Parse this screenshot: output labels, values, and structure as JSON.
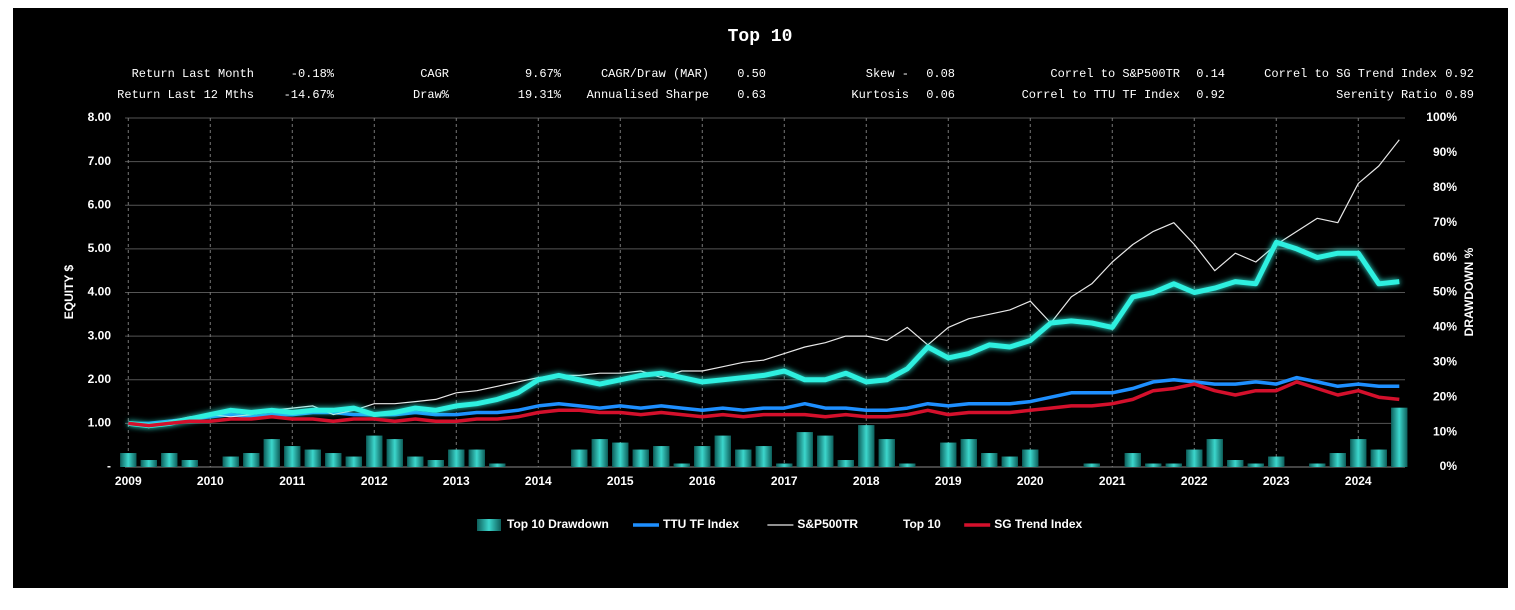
{
  "chart_data": {
    "type": "line",
    "title": "Top 10",
    "stats": [
      [
        "Return Last Month",
        "-0.18%",
        "CAGR",
        "9.67%",
        "CAGR/Draw (MAR)",
        "0.50",
        "Skew -",
        "0.08",
        "Correl to S&P500TR",
        "0.14",
        "Correl to SG Trend Index",
        "0.92"
      ],
      [
        "Return Last 12 Mths",
        "-14.67%",
        "Draw%",
        "19.31%",
        "Annualised Sharpe",
        "0.63",
        "Kurtosis",
        "0.06",
        "Correl to TTU TF Index",
        "0.92",
        "Serenity Ratio",
        "0.89"
      ]
    ],
    "y_label": "EQUITY $",
    "y2_label": "DRAWDOWN %",
    "x": [
      2009,
      2009.25,
      2009.5,
      2009.75,
      2010,
      2010.25,
      2010.5,
      2010.75,
      2011,
      2011.25,
      2011.5,
      2011.75,
      2012,
      2012.25,
      2012.5,
      2012.75,
      2013,
      2013.25,
      2013.5,
      2013.75,
      2014,
      2014.25,
      2014.5,
      2014.75,
      2015,
      2015.25,
      2015.5,
      2015.75,
      2016,
      2016.25,
      2016.5,
      2016.75,
      2017,
      2017.25,
      2017.5,
      2017.75,
      2018,
      2018.25,
      2018.5,
      2018.75,
      2019,
      2019.25,
      2019.5,
      2019.75,
      2020,
      2020.25,
      2020.5,
      2020.75,
      2021,
      2021.25,
      2021.5,
      2021.75,
      2022,
      2022.25,
      2022.5,
      2022.75,
      2023,
      2023.25,
      2023.5,
      2023.75,
      2024,
      2024.25,
      2024.5
    ],
    "xlim": [
      2008.96,
      2024.57
    ],
    "xticks": [
      2009,
      2010,
      2011,
      2012,
      2013,
      2014,
      2015,
      2016,
      2017,
      2018,
      2019,
      2020,
      2021,
      2022,
      2023,
      2024
    ],
    "ylim": [
      0,
      8
    ],
    "yticks": [
      {
        "value": 0,
        "label": "-"
      },
      {
        "value": 1,
        "label": "1.00"
      },
      {
        "value": 2,
        "label": "2.00"
      },
      {
        "value": 3,
        "label": "3.00"
      },
      {
        "value": 4,
        "label": "4.00"
      },
      {
        "value": 5,
        "label": "5.00"
      },
      {
        "value": 6,
        "label": "6.00"
      },
      {
        "value": 7,
        "label": "7.00"
      },
      {
        "value": 8,
        "label": "8.00"
      }
    ],
    "y2lim": [
      0,
      100
    ],
    "y2ticks": [
      {
        "value": 0,
        "label": "0%"
      },
      {
        "value": 10,
        "label": "10%"
      },
      {
        "value": 20,
        "label": "20%"
      },
      {
        "value": 30,
        "label": "30%"
      },
      {
        "value": 40,
        "label": "40%"
      },
      {
        "value": 50,
        "label": "50%"
      },
      {
        "value": 60,
        "label": "60%"
      },
      {
        "value": 70,
        "label": "70%"
      },
      {
        "value": 80,
        "label": "80%"
      },
      {
        "value": 90,
        "label": "90%"
      },
      {
        "value": 100,
        "label": "100%"
      }
    ],
    "grid": true,
    "legend": "bottom",
    "series": [
      {
        "name": "Top 10 Drawdown",
        "type": "bar",
        "axis": "y2",
        "color": "#2bb5ad",
        "values": [
          4,
          2,
          4,
          2,
          0,
          3,
          4,
          8,
          6,
          5,
          4,
          3,
          9,
          8,
          3,
          2,
          5,
          5,
          1,
          0,
          0,
          0,
          5,
          8,
          7,
          5,
          6,
          1,
          6,
          9,
          5,
          6,
          1,
          10,
          9,
          2,
          12,
          8,
          1,
          0,
          7,
          8,
          4,
          3,
          5,
          0,
          0,
          1,
          0,
          4,
          1,
          1,
          5,
          8,
          2,
          1,
          3,
          0,
          1,
          4,
          8,
          5,
          17
        ]
      },
      {
        "name": "TTU TF Index",
        "type": "line",
        "color": "#1e8fff",
        "line_width": 3.5,
        "values": [
          1.0,
          1.0,
          1.05,
          1.1,
          1.15,
          1.2,
          1.15,
          1.2,
          1.2,
          1.25,
          1.25,
          1.2,
          1.2,
          1.2,
          1.25,
          1.2,
          1.2,
          1.25,
          1.25,
          1.3,
          1.4,
          1.45,
          1.4,
          1.35,
          1.4,
          1.35,
          1.4,
          1.35,
          1.3,
          1.35,
          1.3,
          1.35,
          1.35,
          1.45,
          1.35,
          1.35,
          1.3,
          1.3,
          1.35,
          1.45,
          1.4,
          1.45,
          1.45,
          1.45,
          1.5,
          1.6,
          1.7,
          1.7,
          1.7,
          1.8,
          1.95,
          2.0,
          1.95,
          1.9,
          1.9,
          1.95,
          1.9,
          2.05,
          1.95,
          1.85,
          1.9,
          1.85,
          1.85
        ]
      },
      {
        "name": "S&P500TR",
        "type": "line",
        "color": "#e8e8e8",
        "line_width": 1.2,
        "values": [
          1.0,
          0.9,
          1.05,
          1.15,
          1.2,
          1.15,
          1.2,
          1.3,
          1.35,
          1.4,
          1.2,
          1.3,
          1.45,
          1.45,
          1.5,
          1.55,
          1.7,
          1.75,
          1.85,
          1.95,
          2.05,
          2.1,
          2.1,
          2.15,
          2.15,
          2.2,
          2.05,
          2.2,
          2.2,
          2.3,
          2.4,
          2.45,
          2.6,
          2.75,
          2.85,
          3.0,
          3.0,
          2.9,
          3.2,
          2.8,
          3.2,
          3.4,
          3.5,
          3.6,
          3.8,
          3.3,
          3.9,
          4.2,
          4.7,
          5.1,
          5.4,
          5.6,
          5.1,
          4.5,
          4.9,
          4.7,
          5.1,
          5.4,
          5.7,
          5.6,
          6.5,
          6.9,
          7.5
        ]
      },
      {
        "name": "Top 10",
        "type": "line",
        "color": "#2ef0e0",
        "line_width": 5,
        "glow": true,
        "values": [
          1.0,
          0.95,
          1.0,
          1.1,
          1.2,
          1.3,
          1.25,
          1.3,
          1.25,
          1.3,
          1.3,
          1.35,
          1.2,
          1.25,
          1.35,
          1.3,
          1.4,
          1.45,
          1.55,
          1.7,
          2.0,
          2.1,
          2.0,
          1.9,
          2.0,
          2.1,
          2.15,
          2.05,
          1.95,
          2.0,
          2.05,
          2.1,
          2.2,
          2.0,
          2.0,
          2.15,
          1.95,
          2.0,
          2.25,
          2.75,
          2.5,
          2.6,
          2.8,
          2.75,
          2.9,
          3.3,
          3.35,
          3.3,
          3.2,
          3.9,
          4.0,
          4.2,
          4.0,
          4.1,
          4.25,
          4.2,
          5.15,
          5.0,
          4.8,
          4.9,
          4.9,
          4.2,
          4.25
        ]
      },
      {
        "name": "SG Trend Index",
        "type": "line",
        "color": "#d4102c",
        "line_width": 3.5,
        "values": [
          1.0,
          0.95,
          1.0,
          1.05,
          1.05,
          1.1,
          1.1,
          1.15,
          1.1,
          1.1,
          1.05,
          1.1,
          1.1,
          1.05,
          1.1,
          1.05,
          1.05,
          1.1,
          1.1,
          1.15,
          1.25,
          1.3,
          1.3,
          1.25,
          1.25,
          1.2,
          1.25,
          1.2,
          1.15,
          1.2,
          1.15,
          1.2,
          1.2,
          1.2,
          1.15,
          1.2,
          1.15,
          1.15,
          1.2,
          1.3,
          1.2,
          1.25,
          1.25,
          1.25,
          1.3,
          1.35,
          1.4,
          1.4,
          1.45,
          1.55,
          1.75,
          1.8,
          1.9,
          1.75,
          1.65,
          1.75,
          1.75,
          1.95,
          1.8,
          1.65,
          1.75,
          1.6,
          1.55
        ]
      }
    ]
  }
}
